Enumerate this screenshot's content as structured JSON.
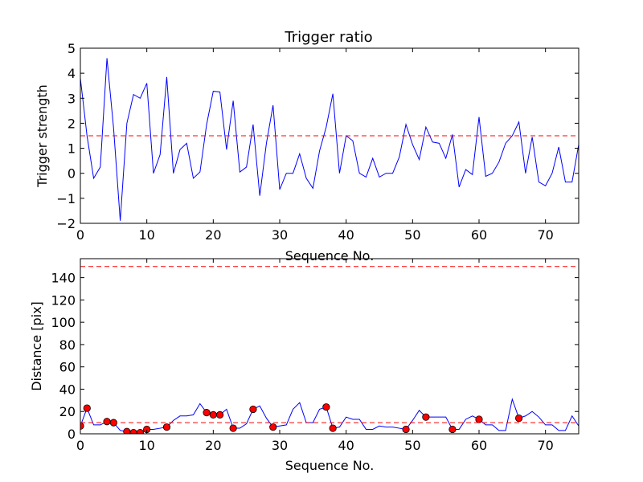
{
  "chart_data": [
    {
      "type": "line",
      "title": "Trigger ratio",
      "xlabel": "Sequence No.",
      "ylabel": "Trigger strength",
      "xlim": [
        0,
        75
      ],
      "ylim": [
        -2,
        5
      ],
      "xticks": [
        0,
        10,
        20,
        30,
        40,
        50,
        60,
        70
      ],
      "yticks": [
        -2,
        -1,
        0,
        1,
        2,
        3,
        4,
        5
      ],
      "grid": false,
      "series": [
        {
          "color": "#0000ff",
          "style": "solid",
          "values": [
            3.8,
            1.5,
            -0.2,
            0.25,
            4.6,
            1.8,
            -1.9,
            2.0,
            3.15,
            3.0,
            3.6,
            0.0,
            0.75,
            3.85,
            0.0,
            0.95,
            1.2,
            -0.2,
            0.05,
            1.95,
            3.28,
            3.25,
            0.95,
            2.9,
            0.05,
            0.25,
            1.95,
            -0.9,
            1.2,
            2.72,
            -0.65,
            0.0,
            0.0,
            0.78,
            -0.2,
            -0.6,
            0.9,
            1.85,
            3.18,
            0.0,
            1.5,
            1.3,
            0.0,
            -0.15,
            0.6,
            -0.15,
            0.0,
            0.0,
            0.65,
            1.95,
            1.15,
            0.55,
            1.85,
            1.25,
            1.2,
            0.6,
            1.55,
            -0.55,
            0.15,
            -0.05,
            2.25,
            -0.12,
            0.0,
            0.45,
            1.2,
            1.5,
            2.05,
            0.0,
            1.45,
            -0.35,
            -0.5,
            0.0,
            1.05,
            -0.35,
            -0.35,
            1.15
          ]
        },
        {
          "color": "#ff0000",
          "style": "dashed",
          "x": [
            0,
            75
          ],
          "values": [
            1.5,
            1.5
          ]
        }
      ]
    },
    {
      "type": "line",
      "title": "",
      "xlabel": "Sequence No.",
      "ylabel": "Distance [pix]",
      "xlim": [
        0,
        75
      ],
      "ylim": [
        0,
        157
      ],
      "xticks": [
        0,
        10,
        20,
        30,
        40,
        50,
        60,
        70
      ],
      "yticks": [
        0,
        20,
        40,
        60,
        80,
        100,
        120,
        140
      ],
      "grid": false,
      "series": [
        {
          "color": "#0000ff",
          "style": "solid",
          "values": [
            7,
            23,
            8,
            8,
            11,
            10,
            3,
            2,
            1,
            1,
            4,
            4,
            5,
            6,
            12,
            16,
            16,
            17,
            27,
            19,
            17,
            17,
            22,
            5,
            5,
            9,
            22,
            25,
            14,
            6,
            7,
            8,
            22,
            28,
            10,
            10,
            22,
            24,
            5,
            6,
            15,
            13,
            13,
            4,
            4,
            7,
            6,
            6,
            5,
            4,
            12,
            21,
            15,
            15,
            15,
            15,
            4,
            4,
            13,
            16,
            13,
            8,
            8,
            3,
            3,
            31,
            14,
            16,
            20,
            15,
            8,
            8,
            3,
            3,
            16,
            7
          ]
        },
        {
          "color": "#ff0000",
          "style": "markers",
          "x": [
            0,
            1,
            4,
            5,
            7,
            8,
            9,
            10,
            13,
            19,
            20,
            21,
            23,
            26,
            29,
            37,
            38,
            49,
            52,
            56,
            60,
            66
          ],
          "values": [
            7,
            23,
            11,
            10,
            2,
            1,
            1,
            4,
            6,
            19,
            17,
            17,
            5,
            22,
            6,
            24,
            5,
            4,
            15,
            4,
            13,
            14
          ]
        },
        {
          "color": "#ff0000",
          "style": "dashed",
          "x": [
            0,
            75
          ],
          "values": [
            10,
            10
          ]
        },
        {
          "color": "#ff0000",
          "style": "dashed",
          "x": [
            0,
            75
          ],
          "values": [
            150,
            150
          ]
        }
      ]
    }
  ]
}
